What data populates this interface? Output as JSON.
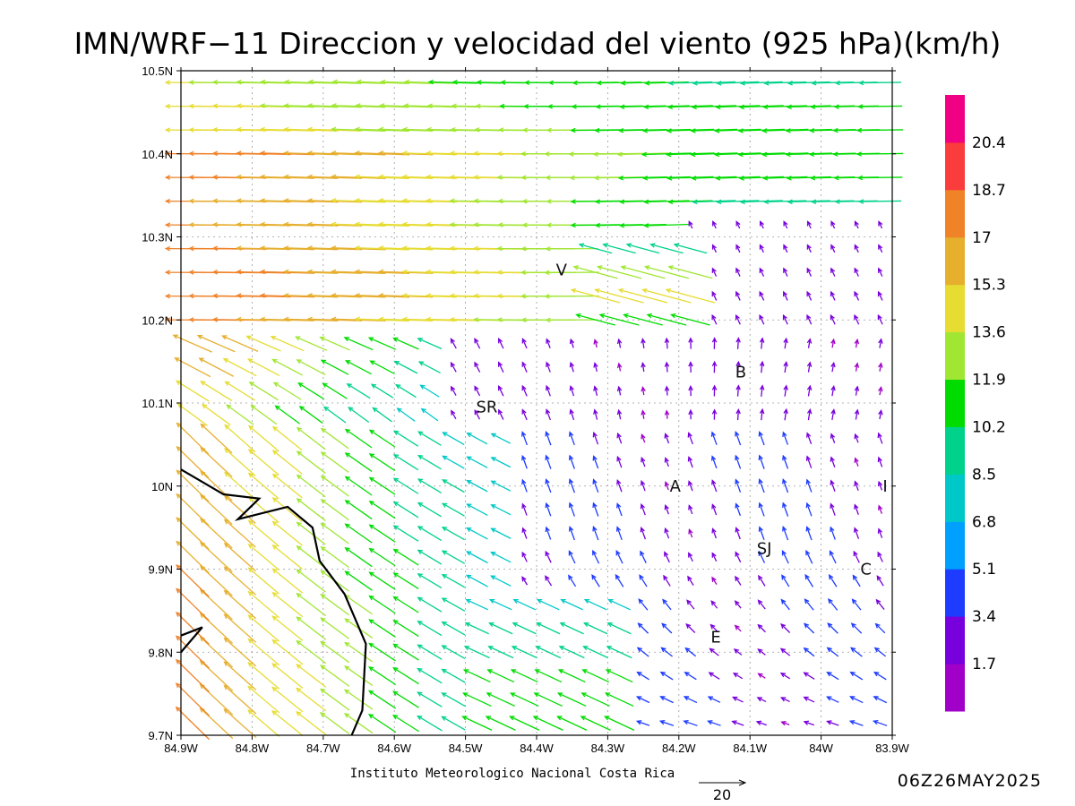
{
  "title": "IMN/WRF−11 Direccion y velocidad del viento (925 hPa)(km/h)",
  "footer": {
    "credit": "Instituto Meteorologico Nacional Costa Rica",
    "timestamp": "06Z26MAY2025",
    "reference_vector_value": "20"
  },
  "map": {
    "lon_range": [
      -84.9,
      -83.9
    ],
    "lat_range": [
      9.7,
      10.5
    ],
    "x_ticks": [
      {
        "value": -84.9,
        "label": "84.9W"
      },
      {
        "value": -84.8,
        "label": "84.8W"
      },
      {
        "value": -84.7,
        "label": "84.7W"
      },
      {
        "value": -84.6,
        "label": "84.6W"
      },
      {
        "value": -84.5,
        "label": "84.5W"
      },
      {
        "value": -84.4,
        "label": "84.4W"
      },
      {
        "value": -84.3,
        "label": "84.3W"
      },
      {
        "value": -84.2,
        "label": "84.2W"
      },
      {
        "value": -84.1,
        "label": "84.1W"
      },
      {
        "value": -84.0,
        "label": "84W"
      },
      {
        "value": -83.9,
        "label": "83.9W"
      }
    ],
    "y_ticks": [
      {
        "value": 9.7,
        "label": "9.7N"
      },
      {
        "value": 9.8,
        "label": "9.8N"
      },
      {
        "value": 9.9,
        "label": "9.9N"
      },
      {
        "value": 10.0,
        "label": "10N"
      },
      {
        "value": 10.1,
        "label": "10.1N"
      },
      {
        "value": 10.2,
        "label": "10.2N"
      },
      {
        "value": 10.3,
        "label": "10.3N"
      },
      {
        "value": 10.4,
        "label": "10.4N"
      },
      {
        "value": 10.5,
        "label": "10.5N"
      }
    ],
    "grid": true,
    "coastline": [
      [
        -84.9,
        10.02
      ],
      [
        -84.84,
        9.99
      ],
      [
        -84.79,
        9.985
      ],
      [
        -84.82,
        9.96
      ],
      [
        -84.75,
        9.975
      ],
      [
        -84.715,
        9.95
      ],
      [
        -84.705,
        9.91
      ],
      [
        -84.67,
        9.87
      ],
      [
        -84.64,
        9.81
      ],
      [
        -84.645,
        9.73
      ],
      [
        -84.66,
        9.7
      ]
    ],
    "coastline_south": [
      [
        -84.9,
        9.82
      ],
      [
        -84.87,
        9.83
      ],
      [
        -84.9,
        9.8
      ]
    ],
    "stations": [
      {
        "label": "V",
        "lon": -84.365,
        "lat": 10.26
      },
      {
        "label": "B",
        "lon": -84.113,
        "lat": 10.137
      },
      {
        "label": "SR",
        "lon": -84.47,
        "lat": 10.095
      },
      {
        "label": "A",
        "lon": -84.205,
        "lat": 10.0
      },
      {
        "label": "I",
        "lon": -83.91,
        "lat": 10.0
      },
      {
        "label": "SJ",
        "lon": -84.08,
        "lat": 9.925
      },
      {
        "label": "C",
        "lon": -83.937,
        "lat": 9.9
      },
      {
        "label": "E",
        "lon": -84.148,
        "lat": 9.818
      }
    ]
  },
  "colorbar": {
    "units": "km/h",
    "colors": [
      "#a000c8",
      "#7800dc",
      "#1e3cff",
      "#00a0ff",
      "#00c8c8",
      "#00d28c",
      "#00dc00",
      "#a0e632",
      "#e6dc32",
      "#e6af2d",
      "#f08228",
      "#fa3c3c",
      "#f00082"
    ],
    "labels": [
      "1.7",
      "3.4",
      "5.1",
      "6.8",
      "8.5",
      "10.2",
      "11.9",
      "13.6",
      "15.3",
      "17",
      "18.7",
      "20.4"
    ]
  }
}
